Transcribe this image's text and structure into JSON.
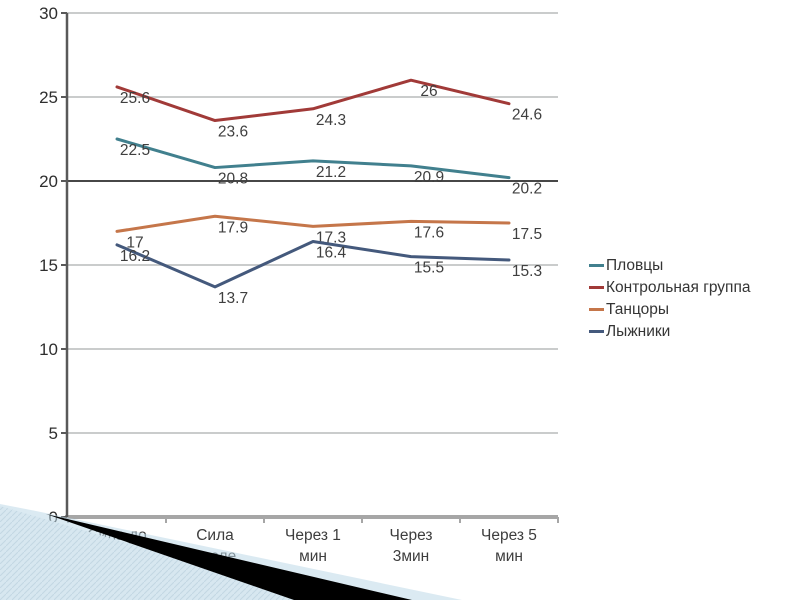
{
  "chart_data": {
    "type": "line",
    "title": "",
    "xlabel": "",
    "ylabel": "",
    "categories": [
      "Сила до",
      "Сила после",
      "Через 1 мин",
      "Через 3мин",
      "Через 5 мин"
    ],
    "category_tick_lines": [
      [
        "Сила до"
      ],
      [
        "Сила",
        "после"
      ],
      [
        "Через 1",
        "мин"
      ],
      [
        "Через",
        "3мин"
      ],
      [
        "Через 5",
        "мин"
      ]
    ],
    "series": [
      {
        "name": "Пловцы",
        "color": "#41808e",
        "values": [
          22.5,
          20.8,
          21.2,
          20.9,
          20.2
        ]
      },
      {
        "name": "Контрольная группа",
        "color": "#a13a38",
        "values": [
          25.6,
          23.6,
          24.3,
          26,
          24.6
        ]
      },
      {
        "name": "Танцоры",
        "color": "#c5764a",
        "values": [
          17,
          17.9,
          17.3,
          17.6,
          17.5
        ]
      },
      {
        "name": "Лыжники",
        "color": "#44597c",
        "values": [
          16.2,
          13.7,
          16.4,
          15.5,
          15.3
        ]
      }
    ],
    "y_ticks": [
      0,
      5,
      10,
      15,
      20,
      25,
      30
    ],
    "ylim": [
      0,
      30
    ],
    "grid": true,
    "emphasized_gridline": 20,
    "data_labels_shown": true,
    "legend_position": "right"
  },
  "style_colors": {
    "gridline": "#b9bcbc",
    "gridline_emphasized": "#474747",
    "axis_left": "#595959",
    "axis_bottom": "#a6a6a6",
    "tick_label": "#2e2e2e",
    "data_label": "#3f3f3f",
    "decoration_blue": "#bdd8e7",
    "decoration_black": "#000000",
    "decoration_hatch_line": "#c9d6dd",
    "decoration_hatch_bg": "#f5f9fb"
  }
}
